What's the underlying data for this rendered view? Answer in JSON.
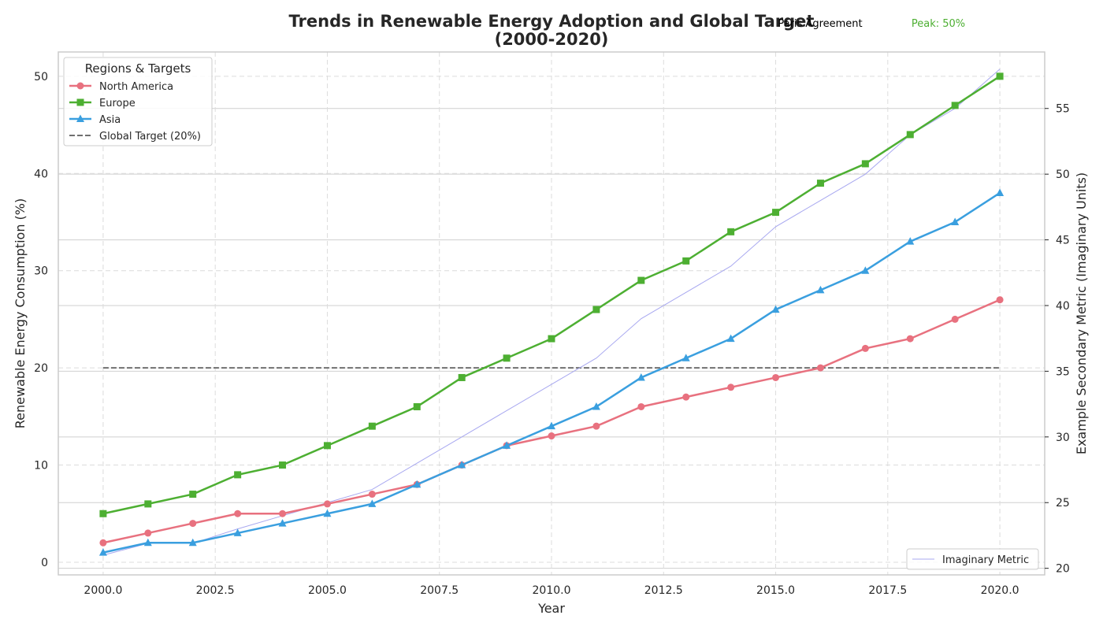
{
  "chart_data": {
    "type": "line",
    "title_line1": "Trends in Renewable Energy Adoption and Global Target",
    "title_line2": "(2000-2020)",
    "xlabel": "Year",
    "ylabel": "Renewable Energy Consumption (%)",
    "y2label": "Example Secondary Metric (Imaginary Units)",
    "xlim": [
      1999,
      2021
    ],
    "ylim": [
      -1.3,
      52.5
    ],
    "y2lim": [
      19.5,
      59.3
    ],
    "xticks": [
      2000,
      2002.5,
      2005,
      2007.5,
      2010,
      2012.5,
      2015,
      2017.5,
      2020
    ],
    "xtick_labels": [
      "2000.0",
      "2002.5",
      "2005.0",
      "2007.5",
      "2010.0",
      "2012.5",
      "2015.0",
      "2017.5",
      "2020.0"
    ],
    "yticks": [
      0,
      10,
      20,
      30,
      40,
      50
    ],
    "yticks_labels": [
      "0",
      "10",
      "20",
      "30",
      "40",
      "50"
    ],
    "y2ticks": [
      20,
      25,
      30,
      35,
      40,
      45,
      50,
      55
    ],
    "y2ticks_labels": [
      "20",
      "25",
      "30",
      "35",
      "40",
      "45",
      "50",
      "55"
    ],
    "grid": true,
    "x": [
      2000,
      2001,
      2002,
      2003,
      2004,
      2005,
      2006,
      2007,
      2008,
      2009,
      2010,
      2011,
      2012,
      2013,
      2014,
      2015,
      2016,
      2017,
      2018,
      2019,
      2020
    ],
    "series": [
      {
        "name": "North America",
        "color": "#e8717f",
        "marker": "circle",
        "values": [
          2,
          3,
          4,
          5,
          5,
          6,
          7,
          8,
          10,
          12,
          13,
          14,
          16,
          17,
          18,
          19,
          20,
          22,
          23,
          25,
          27
        ]
      },
      {
        "name": "Europe",
        "color": "#4daf32",
        "marker": "square",
        "values": [
          5,
          6,
          7,
          9,
          10,
          12,
          14,
          16,
          19,
          21,
          23,
          26,
          29,
          31,
          34,
          36,
          39,
          41,
          44,
          47,
          50
        ]
      },
      {
        "name": "Asia",
        "color": "#3a9fdf",
        "marker": "triangle",
        "values": [
          1,
          2,
          2,
          3,
          4,
          5,
          6,
          8,
          10,
          12,
          14,
          16,
          19,
          21,
          23,
          26,
          28,
          30,
          33,
          35,
          38
        ]
      }
    ],
    "target": {
      "name": "Global Target (20%)",
      "value": 20,
      "color": "#707070"
    },
    "secondary_series": {
      "name": "Imaginary Metric",
      "color": "#a8a8f0",
      "axis": "right",
      "values": [
        21,
        21.9,
        21.9,
        23,
        24,
        25,
        26,
        28,
        30,
        32,
        34,
        36,
        39,
        41,
        43,
        46,
        48,
        50,
        53,
        55,
        58
      ]
    },
    "legend_title": "Regions & Targets",
    "legend_placement": "top-left",
    "secondary_legend_placement": "bottom-right",
    "annotations": [
      {
        "text": "Paris Agreement",
        "color": "#000000"
      },
      {
        "text": "Peak: 50%",
        "color": "#4daf32"
      }
    ]
  }
}
